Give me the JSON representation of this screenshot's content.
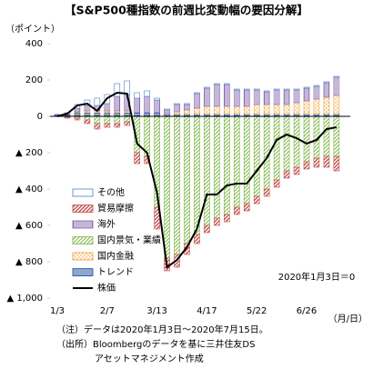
{
  "chart_data": {
    "type": "bar",
    "title": "【S&P500種指数の前週比変動幅の要因分解】",
    "y_label": "（ポイント）",
    "x_label": "（月/日）",
    "annotation": "2020年1月3日＝0",
    "notes": [
      "（注）データは2020年1月3日～2020年7月15日。",
      "（出所）Bloombergのデータを基に三井住友DS",
      "アセットマネジメント作成"
    ],
    "categories": [
      "1/3",
      null,
      null,
      null,
      null,
      "2/7",
      null,
      null,
      null,
      null,
      "3/13",
      null,
      null,
      null,
      null,
      "4/17",
      null,
      null,
      null,
      null,
      "5/22",
      null,
      null,
      null,
      null,
      "6/26",
      null,
      null,
      null
    ],
    "ylim": [
      -1000,
      400
    ],
    "yticks": [
      400,
      200,
      0,
      {
        "value": -200,
        "label": "▲ 200"
      },
      {
        "value": -400,
        "label": "▲ 400"
      },
      {
        "value": -600,
        "label": "▲ 600"
      },
      {
        "value": -800,
        "label": "▲ 800"
      },
      {
        "value": -1000,
        "label": "▲ 1,000"
      }
    ],
    "stacked": true,
    "series": [
      {
        "name": "その他",
        "color": "#4a7fc1",
        "pattern": "outline",
        "values": [
          0,
          0,
          20,
          30,
          40,
          50,
          70,
          75,
          30,
          30,
          10,
          5,
          5,
          5,
          5,
          5,
          5,
          5,
          5,
          5,
          5,
          5,
          5,
          5,
          5,
          5,
          5,
          5,
          5
        ]
      },
      {
        "name": "貿易摩擦",
        "color": "#c0504d",
        "pattern": "diagonal",
        "values": [
          0,
          -5,
          -10,
          -20,
          -30,
          -20,
          -20,
          -20,
          -60,
          -40,
          -120,
          -70,
          -70,
          -60,
          -50,
          -40,
          -40,
          -40,
          -40,
          -40,
          -40,
          -40,
          -40,
          -40,
          -40,
          -40,
          -50,
          -60,
          -80
        ]
      },
      {
        "name": "海外",
        "color": "#7f5fa8",
        "pattern": "vertical",
        "values": [
          0,
          10,
          20,
          30,
          30,
          40,
          80,
          90,
          80,
          90,
          70,
          20,
          40,
          30,
          80,
          100,
          120,
          120,
          90,
          90,
          80,
          70,
          80,
          80,
          70,
          70,
          70,
          80,
          100
        ]
      },
      {
        "name": "国内景気・業績",
        "color": "#7fb848",
        "pattern": "diagonal2",
        "values": [
          0,
          -5,
          -10,
          -20,
          -40,
          -40,
          -40,
          -30,
          -200,
          -220,
          -500,
          -780,
          -760,
          -700,
          -650,
          -600,
          -560,
          -540,
          -500,
          -480,
          -440,
          -400,
          -350,
          -300,
          -280,
          -250,
          -230,
          -220,
          -220
        ]
      },
      {
        "name": "国内金融",
        "color": "#f0a030",
        "pattern": "dots",
        "values": [
          0,
          0,
          5,
          10,
          10,
          10,
          10,
          10,
          0,
          0,
          0,
          0,
          10,
          20,
          30,
          40,
          40,
          40,
          40,
          40,
          50,
          50,
          50,
          50,
          60,
          70,
          80,
          90,
          100
        ]
      },
      {
        "name": "トレンド",
        "color": "#1f4e9c",
        "pattern": "horizontal",
        "values": [
          10,
          10,
          20,
          20,
          20,
          20,
          20,
          20,
          20,
          20,
          20,
          15,
          15,
          15,
          15,
          15,
          15,
          15,
          15,
          15,
          15,
          15,
          15,
          15,
          15,
          15,
          15,
          15,
          15
        ]
      }
    ],
    "line": {
      "name": "株価",
      "color": "#000000",
      "values": [
        0,
        15,
        60,
        70,
        30,
        100,
        130,
        125,
        -150,
        -200,
        -420,
        -830,
        -790,
        -720,
        -620,
        -430,
        -430,
        -380,
        -370,
        -370,
        -300,
        -230,
        -130,
        -100,
        -120,
        -150,
        -130,
        -70,
        -60
      ]
    }
  }
}
